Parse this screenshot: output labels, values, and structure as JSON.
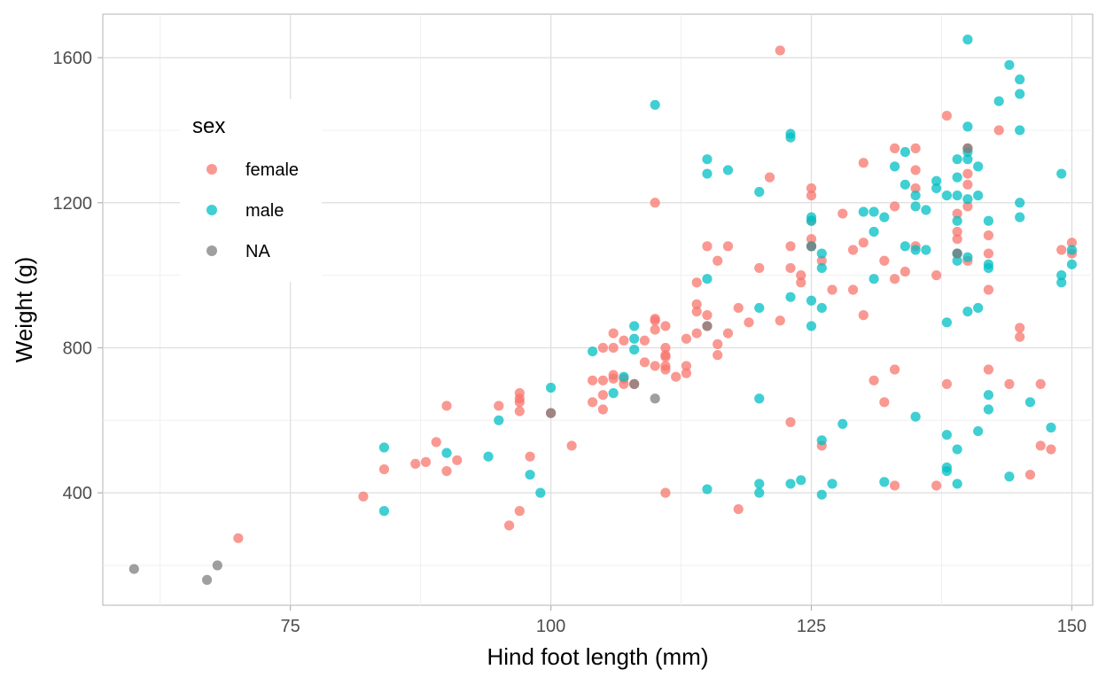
{
  "chart_data": {
    "type": "scatter",
    "title": "",
    "xlabel": "Hind foot length (mm)",
    "ylabel": "Weight (g)",
    "xlim": [
      57,
      152
    ],
    "ylim": [
      90,
      1720
    ],
    "x_ticks": [
      75,
      100,
      125,
      150
    ],
    "y_ticks": [
      400,
      800,
      1200,
      1600
    ],
    "grid": true,
    "legend": {
      "title": "sex",
      "position": "left-inside"
    },
    "series": [
      {
        "name": "female",
        "color": "#F8766D",
        "points": [
          [
            70,
            275
          ],
          [
            82,
            390
          ],
          [
            84,
            465
          ],
          [
            87,
            480
          ],
          [
            88,
            485
          ],
          [
            89,
            540
          ],
          [
            90,
            640
          ],
          [
            90,
            460
          ],
          [
            91,
            490
          ],
          [
            95,
            640
          ],
          [
            96,
            310
          ],
          [
            97,
            675
          ],
          [
            97,
            660
          ],
          [
            97,
            650
          ],
          [
            97,
            625
          ],
          [
            97,
            350
          ],
          [
            98,
            500
          ],
          [
            100,
            620
          ],
          [
            102,
            530
          ],
          [
            104,
            710
          ],
          [
            104,
            650
          ],
          [
            105,
            800
          ],
          [
            105,
            710
          ],
          [
            105,
            670
          ],
          [
            105,
            630
          ],
          [
            106,
            840
          ],
          [
            106,
            800
          ],
          [
            106,
            725
          ],
          [
            106,
            715
          ],
          [
            107,
            820
          ],
          [
            107,
            715
          ],
          [
            107,
            700
          ],
          [
            108,
            700
          ],
          [
            109,
            820
          ],
          [
            109,
            760
          ],
          [
            110,
            880
          ],
          [
            110,
            875
          ],
          [
            110,
            850
          ],
          [
            110,
            750
          ],
          [
            110,
            1200
          ],
          [
            111,
            860
          ],
          [
            111,
            800
          ],
          [
            111,
            780
          ],
          [
            111,
            775
          ],
          [
            111,
            750
          ],
          [
            111,
            740
          ],
          [
            111,
            400
          ],
          [
            112,
            720
          ],
          [
            113,
            825
          ],
          [
            113,
            750
          ],
          [
            113,
            730
          ],
          [
            114,
            980
          ],
          [
            114,
            920
          ],
          [
            114,
            900
          ],
          [
            114,
            840
          ],
          [
            115,
            1080
          ],
          [
            115,
            890
          ],
          [
            115,
            860
          ],
          [
            116,
            1040
          ],
          [
            116,
            810
          ],
          [
            116,
            780
          ],
          [
            117,
            1080
          ],
          [
            117,
            840
          ],
          [
            118,
            910
          ],
          [
            118,
            355
          ],
          [
            119,
            870
          ],
          [
            120,
            1020
          ],
          [
            121,
            1270
          ],
          [
            122,
            1620
          ],
          [
            122,
            875
          ],
          [
            123,
            1080
          ],
          [
            123,
            1020
          ],
          [
            123,
            595
          ],
          [
            124,
            1000
          ],
          [
            124,
            980
          ],
          [
            125,
            1240
          ],
          [
            125,
            1220
          ],
          [
            125,
            1150
          ],
          [
            125,
            1100
          ],
          [
            125,
            1080
          ],
          [
            126,
            1040
          ],
          [
            126,
            530
          ],
          [
            127,
            960
          ],
          [
            128,
            1170
          ],
          [
            129,
            1070
          ],
          [
            129,
            960
          ],
          [
            130,
            1310
          ],
          [
            130,
            1090
          ],
          [
            130,
            890
          ],
          [
            131,
            710
          ],
          [
            132,
            1040
          ],
          [
            132,
            650
          ],
          [
            133,
            1350
          ],
          [
            133,
            1190
          ],
          [
            133,
            990
          ],
          [
            133,
            740
          ],
          [
            133,
            420
          ],
          [
            134,
            1010
          ],
          [
            135,
            1350
          ],
          [
            135,
            1290
          ],
          [
            135,
            1240
          ],
          [
            135,
            1080
          ],
          [
            137,
            1000
          ],
          [
            137,
            420
          ],
          [
            138,
            1440
          ],
          [
            138,
            700
          ],
          [
            139,
            1170
          ],
          [
            139,
            1120
          ],
          [
            139,
            1100
          ],
          [
            139,
            1060
          ],
          [
            140,
            1350
          ],
          [
            140,
            1280
          ],
          [
            140,
            1250
          ],
          [
            140,
            1190
          ],
          [
            140,
            1040
          ],
          [
            142,
            1110
          ],
          [
            142,
            1060
          ],
          [
            142,
            960
          ],
          [
            142,
            740
          ],
          [
            143,
            1400
          ],
          [
            144,
            700
          ],
          [
            145,
            855
          ],
          [
            145,
            830
          ],
          [
            146,
            450
          ],
          [
            147,
            700
          ],
          [
            147,
            530
          ],
          [
            148,
            520
          ],
          [
            149,
            1070
          ],
          [
            150,
            1090
          ],
          [
            150,
            1060
          ]
        ]
      },
      {
        "name": "male",
        "color": "#00BFC4",
        "points": [
          [
            84,
            525
          ],
          [
            84,
            350
          ],
          [
            90,
            510
          ],
          [
            94,
            500
          ],
          [
            95,
            600
          ],
          [
            98,
            450
          ],
          [
            99,
            400
          ],
          [
            100,
            690
          ],
          [
            104,
            790
          ],
          [
            106,
            675
          ],
          [
            107,
            720
          ],
          [
            108,
            860
          ],
          [
            108,
            825
          ],
          [
            108,
            795
          ],
          [
            110,
            1470
          ],
          [
            115,
            1320
          ],
          [
            115,
            1280
          ],
          [
            115,
            990
          ],
          [
            115,
            410
          ],
          [
            117,
            1290
          ],
          [
            120,
            1230
          ],
          [
            120,
            910
          ],
          [
            120,
            660
          ],
          [
            120,
            425
          ],
          [
            120,
            400
          ],
          [
            123,
            1390
          ],
          [
            123,
            1380
          ],
          [
            123,
            940
          ],
          [
            123,
            425
          ],
          [
            124,
            435
          ],
          [
            125,
            1160
          ],
          [
            125,
            1150
          ],
          [
            125,
            1080
          ],
          [
            125,
            930
          ],
          [
            125,
            860
          ],
          [
            126,
            1060
          ],
          [
            126,
            1020
          ],
          [
            126,
            910
          ],
          [
            126,
            545
          ],
          [
            126,
            395
          ],
          [
            127,
            425
          ],
          [
            128,
            590
          ],
          [
            130,
            1175
          ],
          [
            131,
            1175
          ],
          [
            131,
            1120
          ],
          [
            131,
            990
          ],
          [
            132,
            1160
          ],
          [
            132,
            430
          ],
          [
            133,
            1300
          ],
          [
            134,
            1340
          ],
          [
            134,
            1250
          ],
          [
            134,
            1080
          ],
          [
            135,
            1220
          ],
          [
            135,
            1190
          ],
          [
            135,
            1070
          ],
          [
            135,
            610
          ],
          [
            136,
            1180
          ],
          [
            136,
            1070
          ],
          [
            137,
            1260
          ],
          [
            137,
            1240
          ],
          [
            138,
            1220
          ],
          [
            138,
            870
          ],
          [
            138,
            560
          ],
          [
            138,
            470
          ],
          [
            138,
            460
          ],
          [
            139,
            1320
          ],
          [
            139,
            1270
          ],
          [
            139,
            1220
          ],
          [
            139,
            1150
          ],
          [
            139,
            1060
          ],
          [
            139,
            1040
          ],
          [
            139,
            520
          ],
          [
            139,
            425
          ],
          [
            140,
            1650
          ],
          [
            140,
            1410
          ],
          [
            140,
            1340
          ],
          [
            140,
            1320
          ],
          [
            140,
            1210
          ],
          [
            140,
            1050
          ],
          [
            140,
            900
          ],
          [
            141,
            1300
          ],
          [
            141,
            1220
          ],
          [
            141,
            910
          ],
          [
            141,
            570
          ],
          [
            142,
            1150
          ],
          [
            142,
            1030
          ],
          [
            142,
            1020
          ],
          [
            142,
            670
          ],
          [
            142,
            630
          ],
          [
            143,
            1480
          ],
          [
            144,
            1580
          ],
          [
            144,
            445
          ],
          [
            145,
            1540
          ],
          [
            145,
            1500
          ],
          [
            145,
            1400
          ],
          [
            145,
            1200
          ],
          [
            145,
            1160
          ],
          [
            146,
            650
          ],
          [
            148,
            580
          ],
          [
            149,
            1280
          ],
          [
            149,
            1000
          ],
          [
            149,
            980
          ],
          [
            150,
            1070
          ],
          [
            150,
            1030
          ]
        ]
      },
      {
        "name": "NA",
        "color": "#7F7F7F",
        "points": [
          [
            60,
            190
          ],
          [
            67,
            160
          ],
          [
            68,
            200
          ],
          [
            100,
            620
          ],
          [
            108,
            700
          ],
          [
            110,
            660
          ],
          [
            115,
            860
          ],
          [
            125,
            1080
          ],
          [
            140,
            1350
          ],
          [
            139,
            1060
          ]
        ]
      }
    ]
  }
}
